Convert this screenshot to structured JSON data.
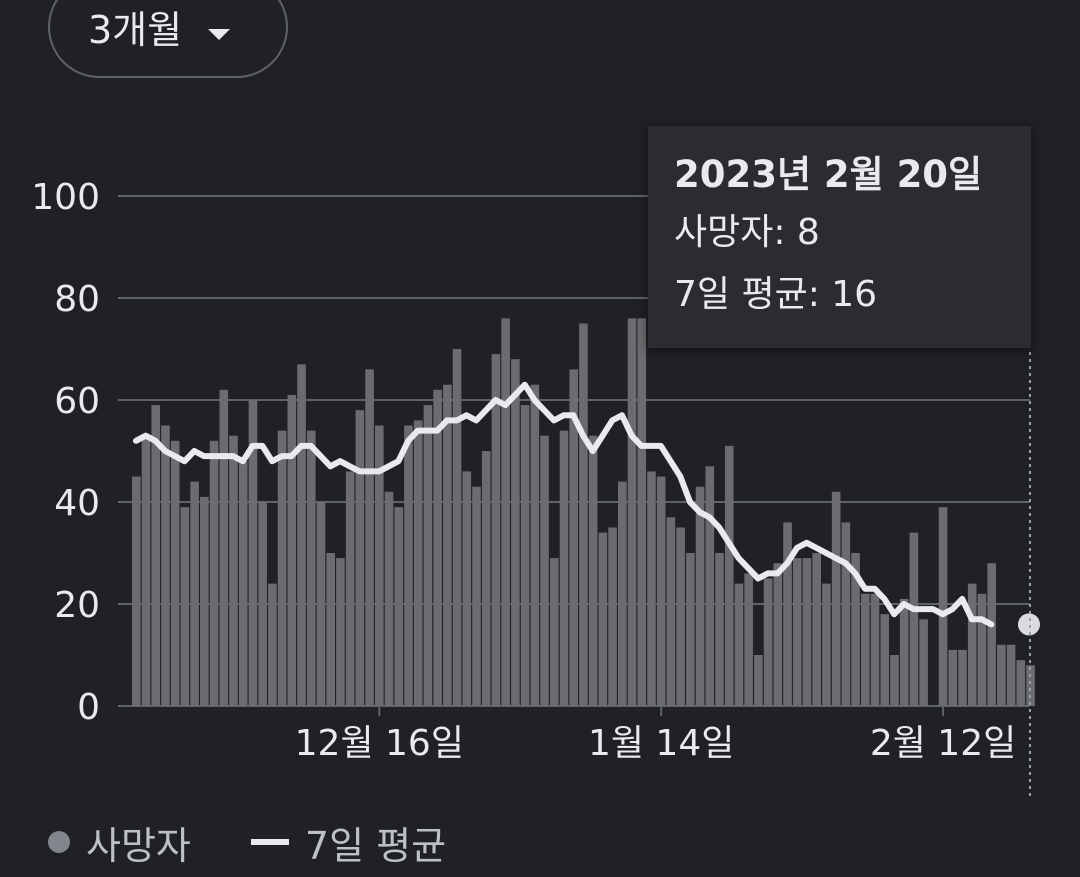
{
  "controls": {
    "range_label": "3개월",
    "range_icon": "caret-down-icon"
  },
  "tooltip": {
    "date": "2023년 2월 20일",
    "deaths_line": "사망자: 8",
    "avg_line": "7일 평균: 16"
  },
  "legend": {
    "deaths": "사망자",
    "avg": "7일 평균"
  },
  "colors": {
    "background": "#202124",
    "bar": "#6b6c6f",
    "line": "#e8eaed",
    "grid": "#5f6368",
    "text": "#e8eaed"
  },
  "chart_data": {
    "type": "bar",
    "ylim": [
      0,
      100
    ],
    "yticks": [
      0,
      20,
      40,
      60,
      80,
      100
    ],
    "xticks": [
      {
        "label": "12월 16일",
        "index": 25
      },
      {
        "label": "1월 14일",
        "index": 54
      },
      {
        "label": "2월 12일",
        "index": 83
      }
    ],
    "series": [
      {
        "name": "사망자",
        "type": "bar",
        "values": [
          45,
          53,
          59,
          55,
          52,
          39,
          44,
          41,
          52,
          62,
          53,
          48,
          60,
          40,
          24,
          54,
          61,
          67,
          54,
          40,
          30,
          29,
          46,
          58,
          66,
          55,
          42,
          39,
          55,
          56,
          59,
          62,
          63,
          70,
          46,
          43,
          50,
          69,
          76,
          68,
          59,
          63,
          53,
          29,
          54,
          66,
          75,
          53,
          34,
          35,
          44,
          76,
          76,
          46,
          45,
          37,
          35,
          30,
          43,
          47,
          30,
          51,
          24,
          26,
          10,
          25,
          28,
          36,
          29,
          29,
          30,
          24,
          42,
          36,
          30,
          22,
          22,
          18,
          10,
          21,
          34,
          17,
          0,
          39,
          11,
          11,
          24,
          22,
          28,
          12,
          12,
          9,
          8
        ]
      },
      {
        "name": "7일 평균",
        "type": "line",
        "values": [
          52,
          53,
          52,
          50,
          49,
          48,
          50,
          49,
          49,
          49,
          49,
          48,
          51,
          51,
          48,
          49,
          49,
          51,
          51,
          49,
          47,
          48,
          47,
          46,
          46,
          46,
          47,
          48,
          52,
          54,
          54,
          54,
          56,
          56,
          57,
          56,
          58,
          60,
          59,
          61,
          63,
          60,
          58,
          56,
          57,
          57,
          53,
          50,
          53,
          56,
          57,
          53,
          51,
          51,
          51,
          48,
          45,
          40,
          38,
          37,
          35,
          32,
          29,
          27,
          25,
          26,
          26,
          28,
          31,
          32,
          31,
          30,
          29,
          28,
          26,
          23,
          23,
          21,
          18,
          20,
          19,
          19,
          19,
          18,
          19,
          21,
          17,
          17,
          16
        ]
      }
    ]
  }
}
